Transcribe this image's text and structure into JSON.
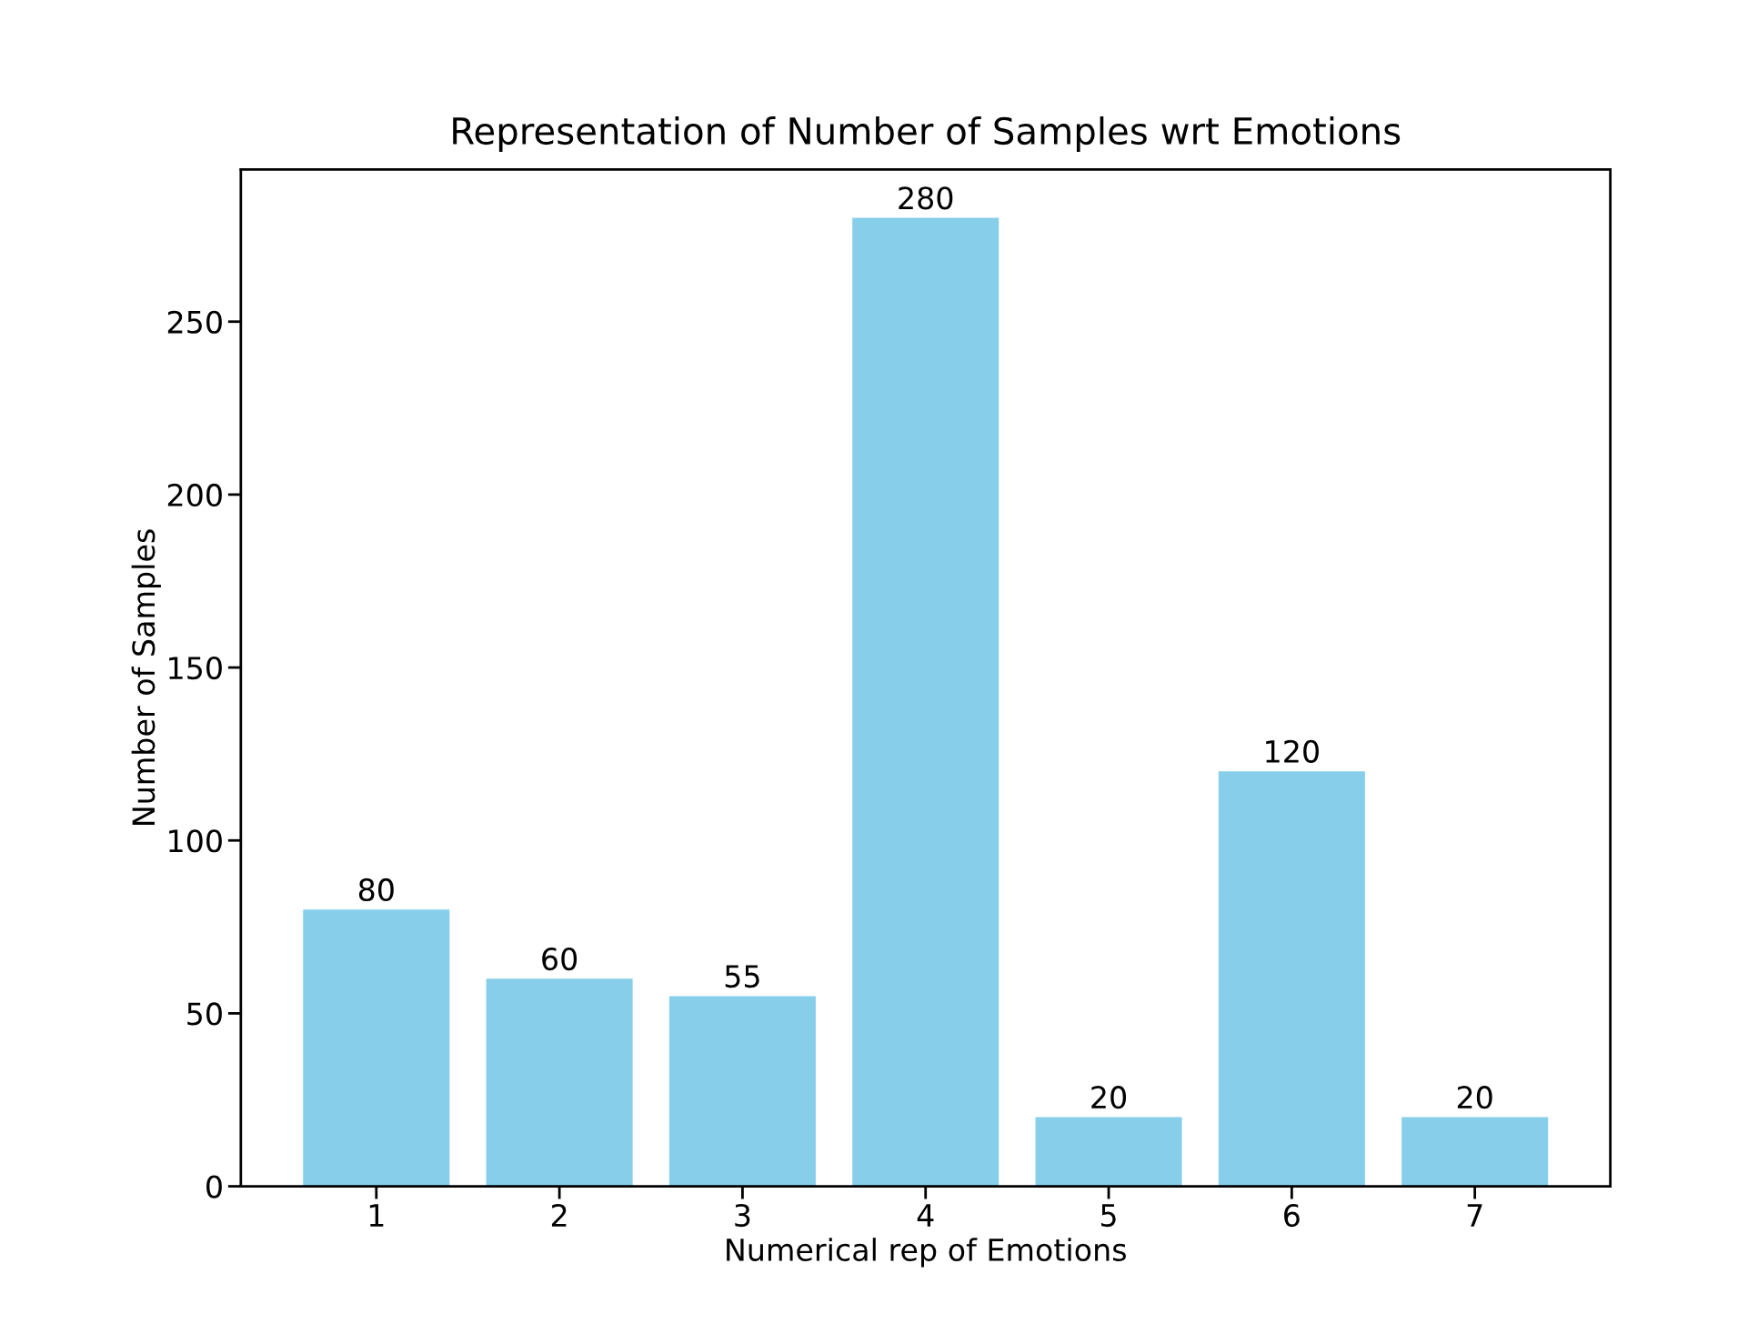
{
  "chart_data": {
    "type": "bar",
    "title": "Representation of Number of Samples wrt Emotions",
    "xlabel": "Numerical rep of Emotions",
    "ylabel": "Number of Samples",
    "categories": [
      "1",
      "2",
      "3",
      "4",
      "5",
      "6",
      "7"
    ],
    "values": [
      80,
      60,
      55,
      280,
      20,
      120,
      20
    ],
    "color": "#87ceeb",
    "ylim": [
      0,
      294
    ],
    "yticks": [
      0,
      50,
      100,
      150,
      200,
      250
    ],
    "data_labels": true,
    "grid": false,
    "legend": false
  }
}
